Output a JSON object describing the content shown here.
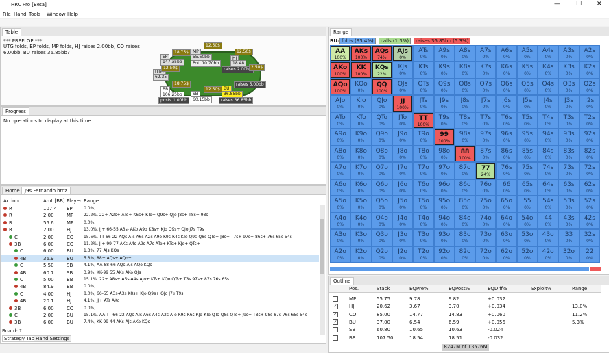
{
  "window": {
    "title": "HRC Pro [Beta]",
    "menu": [
      "File",
      "Hand",
      "Tools",
      "Window",
      "Help"
    ]
  },
  "table_panel": {
    "tab": "Table",
    "lines": [
      "*** PREFLOP ***",
      "UTG folds, EP folds, MP folds, HJ raises 2.00bb, CO raises 6.00bb, BU raises 36.85bb?"
    ],
    "labels": [
      "EP",
      "147.35bb",
      "MP",
      "55.60bb",
      "Pot: 10.70bb",
      "HJ",
      "18.48",
      "UTG",
      "62.35",
      "BB",
      "106.25bb",
      "SB",
      "60.15bb",
      "BU",
      "36.85bb",
      "posts 1.00bb",
      "raises 2.00bb",
      "raises 5.00bb",
      "raises 36.85bb",
      "18.75$",
      "12.50$",
      "12.50$",
      "12.50$",
      "18.75$",
      "12.50$",
      "2.50$"
    ]
  },
  "progress_panel": {
    "tab": "Progress",
    "message": "No operations to display at this time."
  },
  "tree_panel": {
    "tabs": [
      "Home",
      "J9s Fernando.hrcz"
    ],
    "columns": [
      "Action",
      "Amt [BB]",
      "Player",
      "Range"
    ],
    "rows": [
      {
        "level": 0,
        "action": "R",
        "amt": "107.4",
        "player": "EP",
        "range": "0.0%,"
      },
      {
        "level": 0,
        "action": "R",
        "amt": "2.00",
        "player": "MP",
        "range": "22.2%, 22+ A2s+ ATo+ K6s+ KTo+ Q9s+ QJo J8s+ T8s+ 98s"
      },
      {
        "level": 0,
        "action": "R",
        "amt": "55.6",
        "player": "MP",
        "range": "0.0%,"
      },
      {
        "level": 0,
        "action": "R",
        "amt": "2.00",
        "player": "HJ",
        "range": "13.0%, JJ+ 66-55 A3s- AKo A9o K8s+ KJo Q9s+ QJo J7s T9s"
      },
      {
        "level": 1,
        "action": "C",
        "amt": "2.00",
        "player": "CO",
        "range": "15.6%, TT 66-22 AQs ATs A6s-A2s A9o K9s-K4s KTo Q9s-Q8s QTo+ J8s+ T7s+ 97s+ 86s+ 76s 65s 54s"
      },
      {
        "level": 1,
        "action": "3B",
        "amt": "6.00",
        "player": "CO",
        "range": "11.2%, JJ+ 99-77 AKs A4s A9s-A7s ATo+ KTs+ KJo+ QTs+"
      },
      {
        "level": 2,
        "action": "C",
        "amt": "6.00",
        "player": "BU",
        "range": "1.3%, 77 AJs KQs"
      },
      {
        "level": 2,
        "action": "4B",
        "amt": "36.9",
        "player": "BU",
        "range": "5.3%, 88+ AQs+ AQo+",
        "selected": true
      },
      {
        "level": 2,
        "action": "C",
        "amt": "5.50",
        "player": "SB",
        "range": "4.1%, AA 88-66 AQs-AJs AQo KQs"
      },
      {
        "level": 2,
        "action": "4B",
        "amt": "60.7",
        "player": "SB",
        "range": "3.9%, KK-99 55 AKs AKo QJs"
      },
      {
        "level": 2,
        "action": "C",
        "amt": "5.00",
        "player": "BB",
        "range": "15.1%, 22+ A8s+ A5s-A4s AJo+ KTs+ KQo QTs+ T8s 97s+ 87s 76s 65s"
      },
      {
        "level": 2,
        "action": "4B",
        "amt": "84.9",
        "player": "BB",
        "range": "0.0%,"
      },
      {
        "level": 2,
        "action": "C",
        "amt": "4.00",
        "player": "HJ",
        "range": "8.0%, 66-55 A3s-A3s K8s+ KJo Q9s+ QJo J7s T9s"
      },
      {
        "level": 2,
        "action": "4B",
        "amt": "20.1",
        "player": "HJ",
        "range": "4.1%, JJ+ ATs AKo"
      },
      {
        "level": 1,
        "action": "3B",
        "amt": "6.00",
        "player": "CO",
        "range": "0.0%,"
      },
      {
        "level": 1,
        "action": "C",
        "amt": "2.00",
        "player": "BU",
        "range": "15.1%, AA TT 66-22 AQs-ATs A6s A4s-A2s ATo K9s-K6s KJo-KTo QTs-Q8s QTo+ J9s+ T8s+ 98s 87s 76s 65s 54s"
      },
      {
        "level": 1,
        "action": "3B",
        "amt": "6.00",
        "player": "BU",
        "range": "7.4%, KK-99 44 AKs-AJs AKo KQs"
      }
    ],
    "board": "Board: ?",
    "bottom_tabs": [
      "Strategy Table",
      "Hand Settings"
    ]
  },
  "range_panel": {
    "tab": "Range",
    "player": "BU:",
    "legend": [
      {
        "text": "folds (93.4%)",
        "color": "#6ea8ee"
      },
      {
        "text": "calls (1.3%)",
        "color": "#a9dc8f"
      },
      {
        "text": "raises 36.85bb (5.3%)",
        "color": "#ef5a5a"
      }
    ],
    "grid": [
      [
        [
          "AA",
          "100%"
        ],
        [
          "AKs",
          "100%"
        ],
        [
          "AQs",
          "74%"
        ],
        [
          "AJs",
          "0%"
        ],
        [
          "ATs",
          "0%"
        ],
        [
          "A9s",
          "0%"
        ],
        [
          "A8s",
          "0%"
        ],
        [
          "A7s",
          "0%"
        ],
        [
          "A6s",
          "0%"
        ],
        [
          "A5s",
          "0%"
        ],
        [
          "A4s",
          "0%"
        ],
        [
          "A3s",
          "0%"
        ],
        [
          "A2s",
          "0%"
        ]
      ],
      [
        [
          "AKo",
          "100%"
        ],
        [
          "KK",
          "100%"
        ],
        [
          "KQs",
          "22%"
        ],
        [
          "KJs",
          "0%"
        ],
        [
          "KTs",
          "0%"
        ],
        [
          "K9s",
          "0%"
        ],
        [
          "K8s",
          "0%"
        ],
        [
          "K7s",
          "0%"
        ],
        [
          "K6s",
          "0%"
        ],
        [
          "K5s",
          "0%"
        ],
        [
          "K4s",
          "0%"
        ],
        [
          "K3s",
          "0%"
        ],
        [
          "K2s",
          "0%"
        ]
      ],
      [
        [
          "AQo",
          "100%"
        ],
        [
          "KQo",
          "0%"
        ],
        [
          "QQ",
          "100%"
        ],
        [
          "QJs",
          "0%"
        ],
        [
          "QTs",
          "0%"
        ],
        [
          "Q9s",
          "0%"
        ],
        [
          "Q8s",
          "0%"
        ],
        [
          "Q7s",
          "0%"
        ],
        [
          "Q6s",
          "0%"
        ],
        [
          "Q5s",
          "0%"
        ],
        [
          "Q4s",
          "0%"
        ],
        [
          "Q3s",
          "0%"
        ],
        [
          "Q2s",
          "0%"
        ]
      ],
      [
        [
          "AJo",
          "0%"
        ],
        [
          "KJo",
          "0%"
        ],
        [
          "QJo",
          "0%"
        ],
        [
          "JJ",
          "100%"
        ],
        [
          "JTs",
          "0%"
        ],
        [
          "J9s",
          "0%"
        ],
        [
          "J8s",
          "0%"
        ],
        [
          "J7s",
          "0%"
        ],
        [
          "J6s",
          "0%"
        ],
        [
          "J5s",
          "0%"
        ],
        [
          "J4s",
          "0%"
        ],
        [
          "J3s",
          "0%"
        ],
        [
          "J2s",
          "0%"
        ]
      ],
      [
        [
          "ATo",
          "0%"
        ],
        [
          "KTo",
          "0%"
        ],
        [
          "QTo",
          "0%"
        ],
        [
          "JTo",
          "0%"
        ],
        [
          "TT",
          "100%"
        ],
        [
          "T9s",
          "0%"
        ],
        [
          "T8s",
          "0%"
        ],
        [
          "T7s",
          "0%"
        ],
        [
          "T6s",
          "0%"
        ],
        [
          "T5s",
          "0%"
        ],
        [
          "T4s",
          "0%"
        ],
        [
          "T3s",
          "0%"
        ],
        [
          "T2s",
          "0%"
        ]
      ],
      [
        [
          "A9o",
          "0%"
        ],
        [
          "K9o",
          "0%"
        ],
        [
          "Q9o",
          "0%"
        ],
        [
          "J9o",
          "0%"
        ],
        [
          "T9o",
          "0%"
        ],
        [
          "99",
          "100%"
        ],
        [
          "98s",
          "0%"
        ],
        [
          "97s",
          "0%"
        ],
        [
          "96s",
          "0%"
        ],
        [
          "95s",
          "0%"
        ],
        [
          "94s",
          "0%"
        ],
        [
          "93s",
          "0%"
        ],
        [
          "92s",
          "0%"
        ]
      ],
      [
        [
          "A8o",
          "0%"
        ],
        [
          "K8o",
          "0%"
        ],
        [
          "Q8o",
          "0%"
        ],
        [
          "J8o",
          "0%"
        ],
        [
          "T8o",
          "0%"
        ],
        [
          "98o",
          "0%"
        ],
        [
          "88",
          "100%"
        ],
        [
          "87s",
          "0%"
        ],
        [
          "86s",
          "0%"
        ],
        [
          "85s",
          "0%"
        ],
        [
          "84s",
          "0%"
        ],
        [
          "83s",
          "0%"
        ],
        [
          "82s",
          "0%"
        ]
      ],
      [
        [
          "A7o",
          "0%"
        ],
        [
          "K7o",
          "0%"
        ],
        [
          "Q7o",
          "0%"
        ],
        [
          "J7o",
          "0%"
        ],
        [
          "T7o",
          "0%"
        ],
        [
          "97o",
          "0%"
        ],
        [
          "87o",
          "0%"
        ],
        [
          "77",
          "24%"
        ],
        [
          "76s",
          "0%"
        ],
        [
          "75s",
          "0%"
        ],
        [
          "74s",
          "0%"
        ],
        [
          "73s",
          "0%"
        ],
        [
          "72s",
          "0%"
        ]
      ],
      [
        [
          "A6o",
          "0%"
        ],
        [
          "K6o",
          "0%"
        ],
        [
          "Q6o",
          "0%"
        ],
        [
          "J6o",
          "0%"
        ],
        [
          "T6o",
          "0%"
        ],
        [
          "96o",
          "0%"
        ],
        [
          "86o",
          "0%"
        ],
        [
          "76o",
          "0%"
        ],
        [
          "66",
          "0%"
        ],
        [
          "65s",
          "0%"
        ],
        [
          "64s",
          "0%"
        ],
        [
          "63s",
          "0%"
        ],
        [
          "62s",
          "0%"
        ]
      ],
      [
        [
          "A5o",
          "0%"
        ],
        [
          "K5o",
          "0%"
        ],
        [
          "Q5o",
          "0%"
        ],
        [
          "J5o",
          "0%"
        ],
        [
          "T5o",
          "0%"
        ],
        [
          "95o",
          "0%"
        ],
        [
          "85o",
          "0%"
        ],
        [
          "75o",
          "0%"
        ],
        [
          "65o",
          "0%"
        ],
        [
          "55",
          "0%"
        ],
        [
          "54s",
          "0%"
        ],
        [
          "53s",
          "0%"
        ],
        [
          "52s",
          "0%"
        ]
      ],
      [
        [
          "A4o",
          "0%"
        ],
        [
          "K4o",
          "0%"
        ],
        [
          "Q4o",
          "0%"
        ],
        [
          "J4o",
          "0%"
        ],
        [
          "T4o",
          "0%"
        ],
        [
          "94o",
          "0%"
        ],
        [
          "84o",
          "0%"
        ],
        [
          "74o",
          "0%"
        ],
        [
          "64o",
          "0%"
        ],
        [
          "54o",
          "0%"
        ],
        [
          "44",
          "0%"
        ],
        [
          "43s",
          "0%"
        ],
        [
          "42s",
          "0%"
        ]
      ],
      [
        [
          "A3o",
          "0%"
        ],
        [
          "K3o",
          "0%"
        ],
        [
          "Q3o",
          "0%"
        ],
        [
          "J3o",
          "0%"
        ],
        [
          "T3o",
          "0%"
        ],
        [
          "93o",
          "0%"
        ],
        [
          "83o",
          "0%"
        ],
        [
          "73o",
          "0%"
        ],
        [
          "63o",
          "0%"
        ],
        [
          "53o",
          "0%"
        ],
        [
          "43o",
          "0%"
        ],
        [
          "33",
          "0%"
        ],
        [
          "32s",
          "0%"
        ]
      ],
      [
        [
          "A2o",
          "0%"
        ],
        [
          "K2o",
          "0%"
        ],
        [
          "Q2o",
          "0%"
        ],
        [
          "J2o",
          "0%"
        ],
        [
          "T2o",
          "0%"
        ],
        [
          "92o",
          "0%"
        ],
        [
          "82o",
          "0%"
        ],
        [
          "72o",
          "0%"
        ],
        [
          "62o",
          "0%"
        ],
        [
          "52o",
          "0%"
        ],
        [
          "42o",
          "0%"
        ],
        [
          "32o",
          "0%"
        ],
        [
          "22",
          "0%"
        ]
      ]
    ],
    "cell_colors": {
      "AA": "#cfe9a6",
      "AKs": "#ef5a5a",
      "AQs": "#ef5a5a",
      "AJs": "#b4cfa8",
      "AKo": "#ef5a5a",
      "KK": "#ef5a5a",
      "KQs": "#b6df9c",
      "AQo": "#ef5a5a",
      "QQ": "#ef5a5a",
      "JJ": "#ef5a5a",
      "TT": "#ef5a5a",
      "99": "#ef5a5a",
      "88": "#ef5a5a",
      "77": "#b6df9c"
    },
    "default_color": "#5b9bea"
  },
  "outline_panel": {
    "tab": "Outline",
    "columns": [
      "Pos.",
      "Stack",
      "EQPre%",
      "EQPost%",
      "EQDiff%",
      "Exploit%",
      "Range"
    ],
    "rows": [
      {
        "checked": false,
        "cells": [
          "MP",
          "55.75",
          "9.78",
          "9.82",
          "+0.032",
          "",
          ""
        ]
      },
      {
        "checked": true,
        "cells": [
          "HJ",
          "20.62",
          "3.67",
          "3.70",
          "+0.034",
          "",
          "13.0%"
        ]
      },
      {
        "checked": true,
        "cells": [
          "CO",
          "85.00",
          "14.77",
          "14.83",
          "+0.060",
          "",
          "11.2%"
        ]
      },
      {
        "checked": true,
        "cells": [
          "BU",
          "37.00",
          "6.54",
          "6.59",
          "+0.056",
          "",
          "5.3%"
        ]
      },
      {
        "checked": false,
        "cells": [
          "SB",
          "60.80",
          "10.65",
          "10.63",
          "-0.024",
          "",
          ""
        ]
      },
      {
        "checked": false,
        "cells": [
          "BB",
          "107.50",
          "18.54",
          "18.51",
          "-0.032",
          "",
          ""
        ]
      }
    ],
    "memory": "8247M of 13576M"
  }
}
